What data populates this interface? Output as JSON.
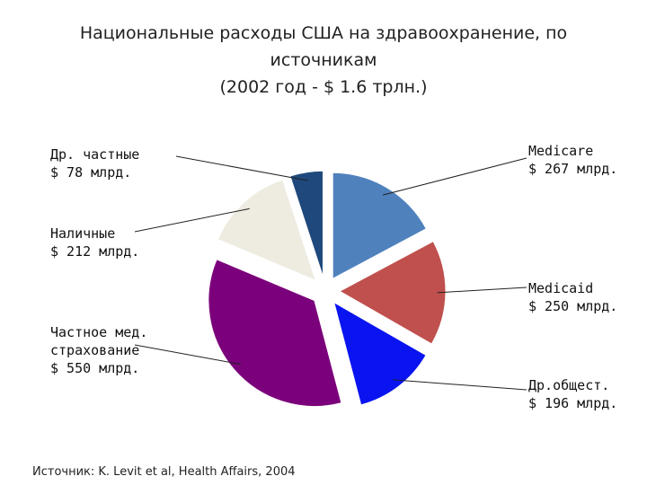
{
  "title_lines": [
    "Национальные расходы США на здравоохранение, по",
    "источникам",
    "(2002 год - $ 1.6 трлн.)"
  ],
  "source": "Источник:  K. Levit et al, Health Affairs, 2004",
  "chart_data": {
    "type": "pie",
    "title": "Национальные расходы США на здравоохранение, по источникам (2002 год - $ 1.6 трлн.)",
    "unit": "млрд.",
    "exploded": true,
    "slices": [
      {
        "label_lines": [
          "Medicare",
          "$ 267 млрд."
        ],
        "value": 267,
        "color": "#4f81bd"
      },
      {
        "label_lines": [
          "Medicaid",
          "$ 250 млрд."
        ],
        "value": 250,
        "color": "#c0504d"
      },
      {
        "label_lines": [
          "Др.общест.",
          "$ 196 млрд."
        ],
        "value": 196,
        "color": "#0a14f0"
      },
      {
        "label_lines": [
          "Частное мед.",
          "страхование",
          "$ 550 млрд."
        ],
        "value": 550,
        "color": "#7b007b"
      },
      {
        "label_lines": [
          "Наличные",
          "$ 212 млрд."
        ],
        "value": 212,
        "color": "#eeece1"
      },
      {
        "label_lines": [
          "Др. частные",
          "$ 78 млрд."
        ],
        "value": 78,
        "color": "#1f497d"
      }
    ]
  }
}
